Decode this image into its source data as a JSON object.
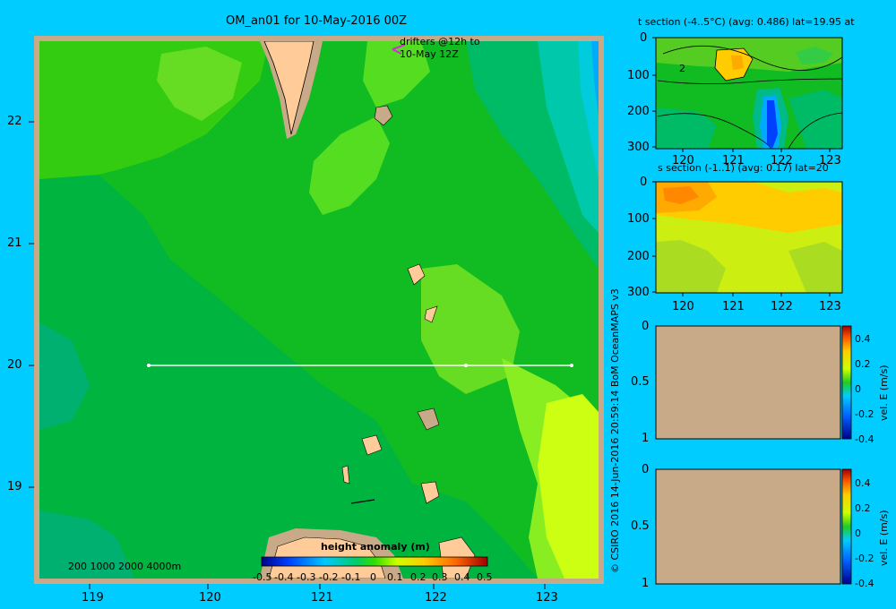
{
  "main_map": {
    "title": "OM_an01 for 10-May-2016 00Z",
    "drifters_note_line1": "drifters @12h to",
    "drifters_note_line2": "10-May 12Z",
    "depth_legend": "200  1000  2000  4000m",
    "colorbar_title": "height anomaly  (m)",
    "colorbar_ticks": [
      "-0.5",
      "-0.4",
      "-0.3",
      "-0.2",
      "-0.1",
      "0",
      "0.1",
      "0.2",
      "0.3",
      "0.4",
      "0.5"
    ],
    "x_ticks": [
      "119",
      "120",
      "121",
      "122",
      "123"
    ],
    "y_ticks": [
      "22",
      "21",
      "20",
      "19"
    ],
    "section_line": {
      "lat": 20,
      "lon_start": 119.5,
      "lon_end": 123.2
    }
  },
  "credit": "© CSIRO 2016   14-Jun-2016 20:59:14 BoM OceanMAPS v3",
  "t_section": {
    "title": "t section (-4..5°C) (avg: 0.486) lat=19.95 at",
    "y_ticks": [
      "0",
      "100",
      "200",
      "300"
    ],
    "x_ticks": [
      "120",
      "121",
      "122",
      "123"
    ],
    "contour_label": "2"
  },
  "s_section": {
    "title": "s section (-1..1) (avg: 0.17) lat=20",
    "y_ticks": [
      "0",
      "100",
      "200",
      "300"
    ],
    "x_ticks": [
      "120",
      "121",
      "122",
      "123"
    ]
  },
  "vel_panel_1": {
    "y_ticks": [
      "0",
      "0.5",
      "1"
    ],
    "colorbar_label": "vel. E  (m/s)",
    "colorbar_ticks": [
      "0.4",
      "0.2",
      "0",
      "-0.2",
      "-0.4"
    ]
  },
  "vel_panel_2": {
    "y_ticks": [
      "0",
      "0.5",
      "1"
    ],
    "colorbar_label": "vel. E  (m/s)",
    "colorbar_ticks": [
      "0.4",
      "0.2",
      "0",
      "-0.2",
      "-0.4"
    ]
  },
  "colors": {
    "background": "#00ccff",
    "land": "#ffcc99",
    "shelf": "#c8aa88",
    "panel_fill": "#c8aa88",
    "section_line": "#ffffff",
    "drifter": "#cc33cc"
  }
}
